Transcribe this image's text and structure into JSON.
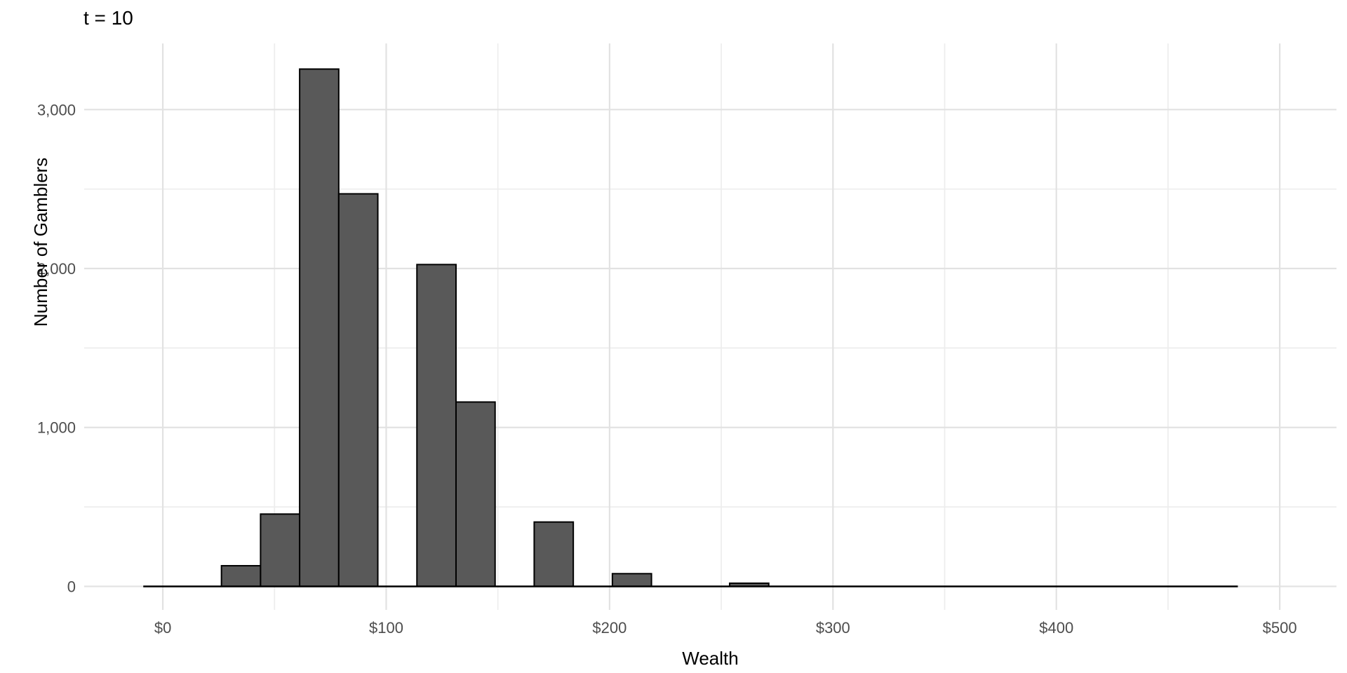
{
  "chart_data": {
    "type": "bar",
    "subtype": "histogram",
    "title": "t = 10",
    "xlabel": "Wealth",
    "ylabel": "Number of Gamblers",
    "bin_width": 17.5,
    "bars": [
      {
        "bin_center": 35,
        "bin_start": 26.25,
        "bin_end": 43.75,
        "count": 130
      },
      {
        "bin_center": 52.5,
        "bin_start": 43.75,
        "bin_end": 61.25,
        "count": 455
      },
      {
        "bin_center": 70,
        "bin_start": 61.25,
        "bin_end": 78.75,
        "count": 3255
      },
      {
        "bin_center": 87.5,
        "bin_start": 78.75,
        "bin_end": 96.25,
        "count": 2470
      },
      {
        "bin_center": 122.5,
        "bin_start": 113.75,
        "bin_end": 131.25,
        "count": 2025
      },
      {
        "bin_center": 140,
        "bin_start": 131.25,
        "bin_end": 148.75,
        "count": 1160
      },
      {
        "bin_center": 175,
        "bin_start": 166.25,
        "bin_end": 183.75,
        "count": 405
      },
      {
        "bin_center": 210,
        "bin_start": 201.25,
        "bin_end": 218.75,
        "count": 80
      },
      {
        "bin_center": 262.5,
        "bin_start": 253.75,
        "bin_end": 271.25,
        "count": 20
      }
    ],
    "zero_count_baseline_extent": [
      -8.75,
      481.25
    ],
    "xlim": [
      -35.2,
      525.4
    ],
    "ylim": [
      -148,
      3416
    ],
    "x_ticks": {
      "labels": [
        "$0",
        "$100",
        "$200",
        "$300",
        "$400",
        "$500"
      ],
      "values": [
        0,
        100,
        200,
        300,
        400,
        500
      ],
      "minor_values": [
        50,
        150,
        250,
        350,
        450
      ]
    },
    "y_ticks": {
      "labels": [
        "0",
        "1,000",
        "2,000",
        "3,000"
      ],
      "values": [
        0,
        1000,
        2000,
        3000
      ],
      "minor_values": [
        500,
        1500,
        2500
      ]
    },
    "grid": true,
    "legend": false,
    "colors": {
      "bar_fill": "#595959",
      "bar_stroke": "#000000",
      "baseline_stroke": "#000000",
      "grid_major": "#E2E2E2",
      "grid_minor": "#EDEDED",
      "tick_text": "#4D4D4D",
      "title_text": "#000000",
      "background": "#FFFFFF"
    }
  }
}
